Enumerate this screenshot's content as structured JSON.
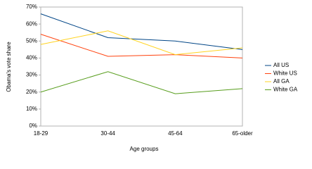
{
  "chart_data": {
    "type": "line",
    "x_label": "Age groups",
    "y_label": "Obama's vote share",
    "categories": [
      "18-29",
      "30-44",
      "45-64",
      "65-older"
    ],
    "series": [
      {
        "name": "All US",
        "color": "#004586",
        "values": [
          66,
          52,
          50,
          45
        ]
      },
      {
        "name": "White US",
        "color": "#ff420e",
        "values": [
          54,
          41,
          42,
          40
        ]
      },
      {
        "name": "All GA",
        "color": "#ffd320",
        "values": [
          48,
          56,
          42,
          46
        ]
      },
      {
        "name": "White GA",
        "color": "#579d1c",
        "values": [
          20,
          32,
          19,
          22
        ]
      }
    ],
    "ylim": [
      0,
      70
    ],
    "yticks": [
      {
        "value": 0,
        "label": "0%"
      },
      {
        "value": 10,
        "label": "10%"
      },
      {
        "value": 20,
        "label": "20%"
      },
      {
        "value": 30,
        "label": "30%"
      },
      {
        "value": 40,
        "label": "40%"
      },
      {
        "value": 50,
        "label": "50%"
      },
      {
        "value": 60,
        "label": "60%"
      },
      {
        "value": 70,
        "label": "70%"
      }
    ],
    "grid": false,
    "legend": "right"
  }
}
